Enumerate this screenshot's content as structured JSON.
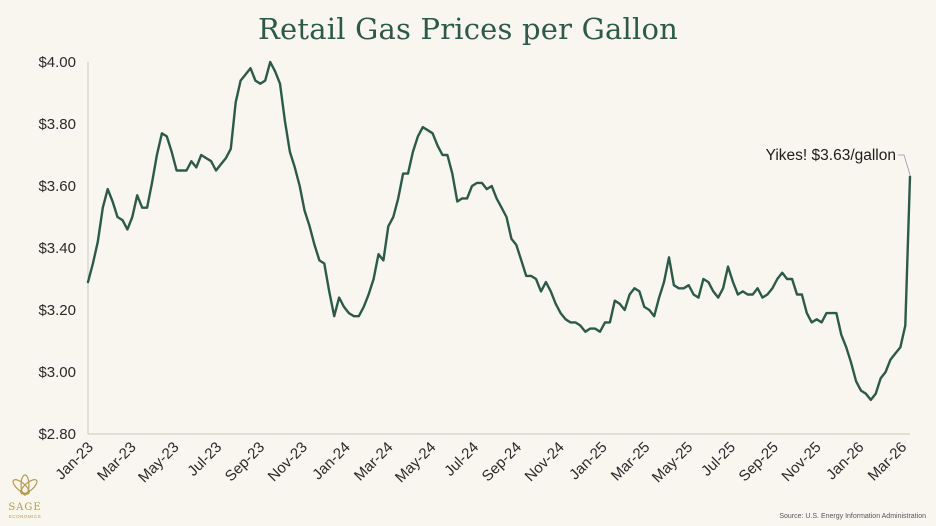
{
  "chart_data": {
    "type": "line",
    "title": "Retail Gas Prices per Gallon",
    "xlabel": "",
    "ylabel": "",
    "ylim": [
      2.8,
      4.0
    ],
    "yticks": [
      2.8,
      3.0,
      3.2,
      3.4,
      3.6,
      3.8,
      4.0
    ],
    "ytick_labels": [
      "$2.80",
      "$3.00",
      "$3.20",
      "$3.40",
      "$3.60",
      "$3.80",
      "$4.00"
    ],
    "xtick_labels": [
      "Jan-23",
      "Mar-23",
      "May-23",
      "Jul-23",
      "Sep-23",
      "Nov-23",
      "Jan-24",
      "Mar-24",
      "May-24",
      "Jul-24",
      "Sep-24",
      "Nov-24",
      "Jan-25",
      "Mar-25",
      "May-25",
      "Jul-25",
      "Sep-25",
      "Nov-25",
      "Jan-26",
      "Mar-26"
    ],
    "x_range_months": [
      0,
      38.4
    ],
    "color": "#2d5a48",
    "series": [
      {
        "name": "Retail gas price ($/gallon)",
        "x": [
          0,
          0.23,
          0.46,
          0.69,
          0.92,
          1.15,
          1.38,
          1.61,
          1.84,
          2.07,
          2.3,
          2.53,
          2.76,
          2.99,
          3.22,
          3.45,
          3.68,
          3.91,
          4.14,
          4.37,
          4.6,
          4.83,
          5.06,
          5.29,
          5.52,
          5.75,
          5.98,
          6.21,
          6.44,
          6.67,
          6.9,
          7.13,
          7.36,
          7.59,
          7.82,
          8.05,
          8.28,
          8.51,
          8.74,
          8.97,
          9.2,
          9.43,
          9.66,
          9.89,
          10.12,
          10.35,
          10.58,
          10.81,
          11.04,
          11.27,
          11.5,
          11.73,
          11.96,
          12.19,
          12.42,
          12.65,
          12.88,
          13.11,
          13.34,
          13.57,
          13.8,
          14.03,
          14.26,
          14.49,
          14.72,
          14.95,
          15.18,
          15.41,
          15.64,
          15.87,
          16.1,
          16.33,
          16.56,
          16.79,
          17.02,
          17.25,
          17.48,
          17.71,
          17.94,
          18.17,
          18.4,
          18.63,
          18.86,
          19.09,
          19.32,
          19.55,
          19.78,
          20.01,
          20.24,
          20.47,
          20.7,
          20.93,
          21.16,
          21.39,
          21.62,
          21.85,
          22.08,
          22.31,
          22.54,
          22.77,
          23,
          23.23,
          23.46,
          23.69,
          23.92,
          24.15,
          24.38,
          24.61,
          24.84,
          25.07,
          25.3,
          25.53,
          25.76,
          25.99,
          26.22,
          26.45,
          26.68,
          26.91,
          27.14,
          27.37,
          27.6,
          27.83,
          28.06,
          28.29,
          28.52,
          28.75,
          28.98,
          29.21,
          29.44,
          29.67,
          29.9,
          30.13,
          30.36,
          30.59,
          30.82,
          31.05,
          31.28,
          31.51,
          31.74,
          31.97,
          32.2,
          32.43,
          32.66,
          32.89,
          33.12,
          33.35,
          33.58,
          33.81,
          34.04,
          34.27,
          34.5,
          34.73,
          34.96,
          35.19,
          35.42,
          35.65,
          35.88,
          36.11,
          36.34,
          36.57,
          36.8,
          37.03,
          37.26,
          37.49,
          37.72,
          37.95,
          38.18,
          38.4
        ],
        "values": [
          3.29,
          3.35,
          3.42,
          3.53,
          3.59,
          3.55,
          3.5,
          3.49,
          3.46,
          3.5,
          3.57,
          3.53,
          3.53,
          3.61,
          3.7,
          3.77,
          3.76,
          3.71,
          3.65,
          3.65,
          3.65,
          3.68,
          3.66,
          3.7,
          3.69,
          3.68,
          3.65,
          3.67,
          3.69,
          3.72,
          3.87,
          3.94,
          3.96,
          3.98,
          3.94,
          3.93,
          3.94,
          4.0,
          3.97,
          3.93,
          3.81,
          3.71,
          3.66,
          3.6,
          3.52,
          3.47,
          3.41,
          3.36,
          3.35,
          3.26,
          3.18,
          3.24,
          3.21,
          3.19,
          3.18,
          3.18,
          3.21,
          3.25,
          3.3,
          3.38,
          3.36,
          3.47,
          3.5,
          3.56,
          3.64,
          3.64,
          3.71,
          3.76,
          3.79,
          3.78,
          3.77,
          3.73,
          3.7,
          3.7,
          3.64,
          3.55,
          3.56,
          3.56,
          3.6,
          3.61,
          3.61,
          3.59,
          3.6,
          3.56,
          3.53,
          3.5,
          3.43,
          3.41,
          3.36,
          3.31,
          3.31,
          3.3,
          3.26,
          3.29,
          3.26,
          3.22,
          3.19,
          3.17,
          3.16,
          3.16,
          3.15,
          3.13,
          3.14,
          3.14,
          3.13,
          3.16,
          3.16,
          3.23,
          3.22,
          3.2,
          3.25,
          3.27,
          3.26,
          3.21,
          3.2,
          3.18,
          3.24,
          3.29,
          3.37,
          3.28,
          3.27,
          3.27,
          3.28,
          3.25,
          3.24,
          3.3,
          3.29,
          3.26,
          3.24,
          3.27,
          3.34,
          3.29,
          3.25,
          3.26,
          3.25,
          3.25,
          3.27,
          3.24,
          3.25,
          3.27,
          3.3,
          3.32,
          3.3,
          3.3,
          3.25,
          3.25,
          3.19,
          3.16,
          3.17,
          3.16,
          3.19,
          3.19,
          3.19,
          3.12,
          3.08,
          3.03,
          2.97,
          2.94,
          2.93,
          2.91,
          2.93,
          2.98,
          3.0,
          3.04,
          3.06,
          3.08,
          3.15,
          3.63
        ]
      }
    ],
    "annotation": {
      "text": "Yikes! $3.63/gallon",
      "x": 38.4,
      "y": 3.63
    }
  },
  "source": "Source: U.S. Energy Information Administration",
  "logo": {
    "word": "SAGE",
    "sub": "ECONOMICS"
  }
}
